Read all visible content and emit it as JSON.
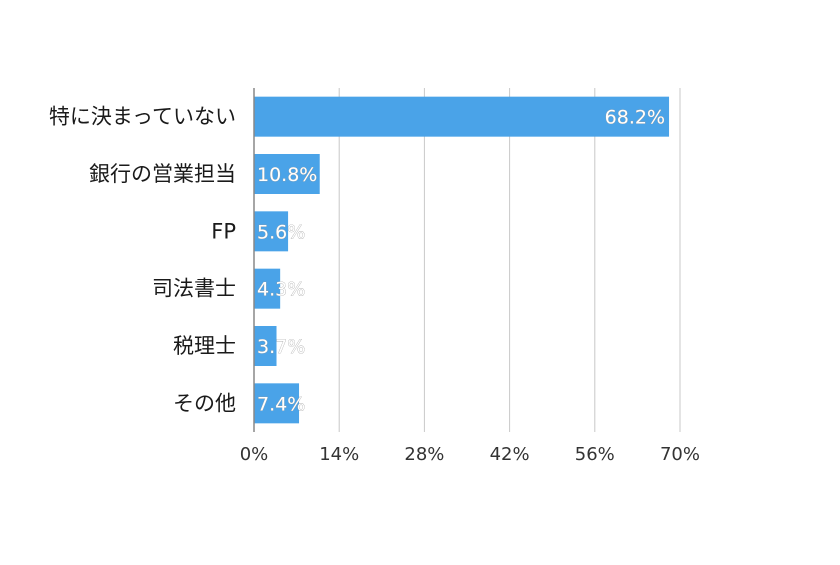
{
  "chart_data": {
    "type": "bar",
    "orientation": "horizontal",
    "title": "",
    "xlabel": "",
    "ylabel": "",
    "categories": [
      "特に決まっていない",
      "銀行の営業担当",
      "FP",
      "司法書士",
      "税理士",
      "その他"
    ],
    "values": [
      68.2,
      10.8,
      5.6,
      4.3,
      3.7,
      7.4
    ],
    "data_labels": [
      "68.2%",
      "10.8%",
      "5.6%",
      "4.3%",
      "3.7%",
      "7.4%"
    ],
    "xlim": [
      0,
      70
    ],
    "xticks": [
      0,
      14,
      28,
      42,
      56,
      70
    ],
    "xtick_labels": [
      "0%",
      "14%",
      "28%",
      "42%",
      "56%",
      "70%"
    ],
    "grid": "vertical",
    "legend": "none",
    "bar_color": "#4aa3e8",
    "grid_color": "#c8c8c8",
    "axis_color": "#888888"
  }
}
